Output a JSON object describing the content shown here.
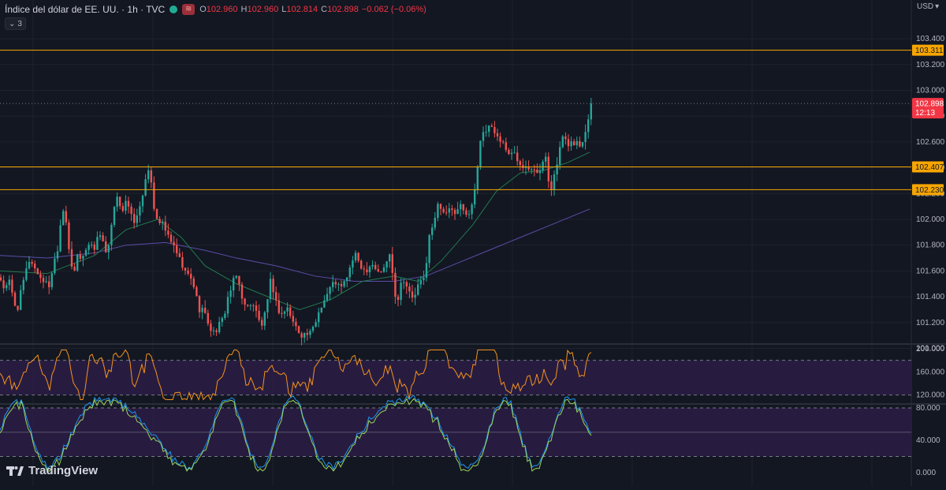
{
  "header": {
    "symbol_title": "Índice del dólar de EE. UU. · 1h · TVC",
    "ohlc": {
      "o_label": "O",
      "o_value": "102.960",
      "h_label": "H",
      "h_value": "102.960",
      "l_label": "L",
      "l_value": "102.814",
      "c_label": "C",
      "c_value": "102.898",
      "change": "−0.062 (−0.06%)"
    },
    "indicator_count": "3",
    "currency": "USD"
  },
  "logo_text": "TradingView",
  "colors": {
    "background": "#131722",
    "grid": "#1e222d",
    "up": "#26a69a",
    "down": "#ef5350",
    "level_line": "#f7a600",
    "ma_fast": "#1f7a4d",
    "ma_slow": "#5b4da8",
    "price_tag": "#f23645",
    "band_fill": "#2a1d44",
    "osc1": "#f7931a",
    "osc2_a": "#2196f3",
    "osc2_b": "#9bd35a"
  },
  "price_axis": {
    "ticks": [
      "103.400",
      "103.200",
      "103.000",
      "102.800",
      "102.600",
      "102.400",
      "102.200",
      "102.000",
      "101.800",
      "101.600",
      "101.400",
      "101.200",
      "101.000"
    ]
  },
  "levels": [
    {
      "value": 103.311,
      "label": "103.311"
    },
    {
      "value": 102.407,
      "label": "102.407"
    },
    {
      "value": 102.23,
      "label": "102.230"
    }
  ],
  "last_price": {
    "value": 102.898,
    "label": "102.898",
    "countdown": "12:13"
  },
  "osc1_axis": {
    "ticks": [
      "200.000",
      "160.000",
      "120.000"
    ],
    "bands": [
      180,
      120
    ]
  },
  "osc2_axis": {
    "ticks": [
      "80.000",
      "40.000",
      "0.000"
    ],
    "bands": [
      80,
      20
    ],
    "mid": 50
  },
  "chart_data": {
    "type": "candlestick",
    "ylim": [
      100.98,
      103.5
    ],
    "close_path": [
      [
        0,
        101.55
      ],
      [
        6,
        101.45
      ],
      [
        12,
        101.52
      ],
      [
        18,
        101.35
      ],
      [
        22,
        101.3
      ],
      [
        28,
        101.48
      ],
      [
        34,
        101.62
      ],
      [
        38,
        101.7
      ],
      [
        44,
        101.62
      ],
      [
        50,
        101.56
      ],
      [
        56,
        101.52
      ],
      [
        62,
        101.48
      ],
      [
        68,
        101.66
      ],
      [
        74,
        101.8
      ],
      [
        78,
        102.05
      ],
      [
        82,
        102.1
      ],
      [
        86,
        101.86
      ],
      [
        90,
        101.62
      ],
      [
        94,
        101.58
      ],
      [
        98,
        101.72
      ],
      [
        104,
        101.7
      ],
      [
        110,
        101.78
      ],
      [
        116,
        101.82
      ],
      [
        120,
        101.78
      ],
      [
        124,
        101.86
      ],
      [
        128,
        101.9
      ],
      [
        132,
        101.8
      ],
      [
        136,
        101.7
      ],
      [
        140,
        101.88
      ],
      [
        144,
        102.06
      ],
      [
        148,
        102.16
      ],
      [
        152,
        102.12
      ],
      [
        156,
        102.08
      ],
      [
        160,
        102.16
      ],
      [
        164,
        102.06
      ],
      [
        168,
        102.0
      ],
      [
        172,
        101.98
      ],
      [
        176,
        102.06
      ],
      [
        180,
        102.18
      ],
      [
        184,
        102.28
      ],
      [
        188,
        102.36
      ],
      [
        192,
        102.3
      ],
      [
        196,
        102.06
      ],
      [
        200,
        102.0
      ],
      [
        204,
        101.98
      ],
      [
        208,
        101.94
      ],
      [
        212,
        101.88
      ],
      [
        216,
        101.86
      ],
      [
        220,
        101.78
      ],
      [
        224,
        101.74
      ],
      [
        228,
        101.68
      ],
      [
        232,
        101.62
      ],
      [
        236,
        101.58
      ],
      [
        240,
        101.56
      ],
      [
        244,
        101.52
      ],
      [
        248,
        101.44
      ],
      [
        252,
        101.3
      ],
      [
        256,
        101.32
      ],
      [
        260,
        101.26
      ],
      [
        264,
        101.2
      ],
      [
        268,
        101.14
      ],
      [
        272,
        101.12
      ],
      [
        276,
        101.16
      ],
      [
        280,
        101.2
      ],
      [
        284,
        101.24
      ],
      [
        288,
        101.38
      ],
      [
        292,
        101.44
      ],
      [
        296,
        101.52
      ],
      [
        300,
        101.56
      ],
      [
        304,
        101.48
      ],
      [
        308,
        101.38
      ],
      [
        312,
        101.3
      ],
      [
        316,
        101.34
      ],
      [
        320,
        101.36
      ],
      [
        324,
        101.3
      ],
      [
        328,
        101.22
      ],
      [
        332,
        101.18
      ],
      [
        336,
        101.26
      ],
      [
        340,
        101.38
      ],
      [
        344,
        101.56
      ],
      [
        348,
        101.4
      ],
      [
        352,
        101.32
      ],
      [
        356,
        101.26
      ],
      [
        360,
        101.28
      ],
      [
        364,
        101.32
      ],
      [
        368,
        101.26
      ],
      [
        372,
        101.2
      ],
      [
        376,
        101.16
      ],
      [
        380,
        101.12
      ],
      [
        384,
        101.1
      ],
      [
        388,
        101.12
      ],
      [
        392,
        101.1
      ],
      [
        396,
        101.14
      ],
      [
        400,
        101.2
      ],
      [
        404,
        101.28
      ],
      [
        408,
        101.34
      ],
      [
        412,
        101.38
      ],
      [
        416,
        101.44
      ],
      [
        420,
        101.48
      ],
      [
        424,
        101.52
      ],
      [
        428,
        101.5
      ],
      [
        432,
        101.46
      ],
      [
        436,
        101.5
      ],
      [
        440,
        101.56
      ],
      [
        444,
        101.62
      ],
      [
        448,
        101.7
      ],
      [
        452,
        101.72
      ],
      [
        456,
        101.66
      ],
      [
        460,
        101.62
      ],
      [
        464,
        101.6
      ],
      [
        468,
        101.64
      ],
      [
        472,
        101.66
      ],
      [
        476,
        101.62
      ],
      [
        480,
        101.6
      ],
      [
        484,
        101.58
      ],
      [
        488,
        101.64
      ],
      [
        492,
        101.7
      ],
      [
        496,
        101.74
      ],
      [
        500,
        101.44
      ],
      [
        504,
        101.36
      ],
      [
        508,
        101.5
      ],
      [
        512,
        101.54
      ],
      [
        516,
        101.48
      ],
      [
        520,
        101.42
      ],
      [
        524,
        101.38
      ],
      [
        528,
        101.44
      ],
      [
        532,
        101.52
      ],
      [
        536,
        101.5
      ],
      [
        540,
        101.62
      ],
      [
        544,
        101.86
      ],
      [
        548,
        101.92
      ],
      [
        552,
        102.02
      ],
      [
        556,
        102.12
      ],
      [
        560,
        102.1
      ],
      [
        564,
        102.04
      ],
      [
        568,
        102.08
      ],
      [
        572,
        102.06
      ],
      [
        576,
        102.04
      ],
      [
        580,
        102.06
      ],
      [
        584,
        102.1
      ],
      [
        588,
        102.06
      ],
      [
        592,
        102.02
      ],
      [
        596,
        102.08
      ],
      [
        600,
        102.14
      ],
      [
        604,
        102.28
      ],
      [
        608,
        102.58
      ],
      [
        612,
        102.7
      ],
      [
        616,
        102.68
      ],
      [
        620,
        102.7
      ],
      [
        624,
        102.72
      ],
      [
        628,
        102.66
      ],
      [
        632,
        102.64
      ],
      [
        636,
        102.6
      ],
      [
        640,
        102.58
      ],
      [
        644,
        102.52
      ],
      [
        648,
        102.5
      ],
      [
        652,
        102.52
      ],
      [
        656,
        102.46
      ],
      [
        660,
        102.44
      ],
      [
        664,
        102.42
      ],
      [
        668,
        102.42
      ],
      [
        672,
        102.4
      ],
      [
        676,
        102.42
      ],
      [
        680,
        102.38
      ],
      [
        684,
        102.36
      ],
      [
        688,
        102.42
      ],
      [
        692,
        102.5
      ],
      [
        696,
        102.3
      ],
      [
        700,
        102.24
      ],
      [
        704,
        102.36
      ],
      [
        708,
        102.46
      ],
      [
        712,
        102.62
      ],
      [
        716,
        102.62
      ],
      [
        720,
        102.58
      ],
      [
        724,
        102.6
      ],
      [
        728,
        102.58
      ],
      [
        732,
        102.6
      ],
      [
        736,
        102.56
      ],
      [
        740,
        102.64
      ],
      [
        744,
        102.72
      ],
      [
        748,
        102.86
      ],
      [
        750,
        102.9
      ]
    ],
    "ma_fast": [
      [
        0,
        101.6
      ],
      [
        60,
        101.58
      ],
      [
        120,
        101.72
      ],
      [
        160,
        101.92
      ],
      [
        200,
        102.0
      ],
      [
        230,
        101.86
      ],
      [
        260,
        101.64
      ],
      [
        300,
        101.5
      ],
      [
        340,
        101.4
      ],
      [
        380,
        101.3
      ],
      [
        420,
        101.38
      ],
      [
        460,
        101.52
      ],
      [
        500,
        101.56
      ],
      [
        530,
        101.52
      ],
      [
        560,
        101.68
      ],
      [
        600,
        101.96
      ],
      [
        630,
        102.22
      ],
      [
        660,
        102.36
      ],
      [
        690,
        102.38
      ],
      [
        720,
        102.44
      ],
      [
        748,
        102.52
      ]
    ],
    "ma_slow": [
      [
        0,
        101.72
      ],
      [
        60,
        101.7
      ],
      [
        120,
        101.74
      ],
      [
        160,
        101.8
      ],
      [
        210,
        101.82
      ],
      [
        260,
        101.76
      ],
      [
        300,
        101.7
      ],
      [
        350,
        101.64
      ],
      [
        400,
        101.56
      ],
      [
        450,
        101.52
      ],
      [
        500,
        101.52
      ],
      [
        540,
        101.56
      ],
      [
        580,
        101.66
      ],
      [
        620,
        101.76
      ],
      [
        660,
        101.86
      ],
      [
        700,
        101.96
      ],
      [
        748,
        102.08
      ]
    ]
  }
}
